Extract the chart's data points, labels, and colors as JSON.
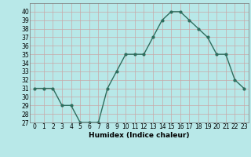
{
  "x": [
    0,
    1,
    2,
    3,
    4,
    5,
    6,
    7,
    8,
    9,
    10,
    11,
    12,
    13,
    14,
    15,
    16,
    17,
    18,
    19,
    20,
    21,
    22,
    23
  ],
  "y": [
    31,
    31,
    31,
    29,
    29,
    27,
    27,
    27,
    31,
    33,
    35,
    35,
    35,
    37,
    39,
    40,
    40,
    39,
    38,
    37,
    35,
    35,
    32,
    31
  ],
  "line_color": "#2e6e5e",
  "marker_color": "#2e6e5e",
  "bg_color": "#b8e8e8",
  "grid_color": "#c8a8a8",
  "xlabel": "Humidex (Indice chaleur)",
  "xlim": [
    -0.5,
    23.5
  ],
  "ylim": [
    27,
    41
  ],
  "yticks": [
    27,
    28,
    29,
    30,
    31,
    32,
    33,
    34,
    35,
    36,
    37,
    38,
    39,
    40
  ],
  "xticks": [
    0,
    1,
    2,
    3,
    4,
    5,
    6,
    7,
    8,
    9,
    10,
    11,
    12,
    13,
    14,
    15,
    16,
    17,
    18,
    19,
    20,
    21,
    22,
    23
  ],
  "fontsize_ticks": 5.5,
  "fontsize_xlabel": 6.5,
  "linewidth": 1.0,
  "markersize": 2.0
}
